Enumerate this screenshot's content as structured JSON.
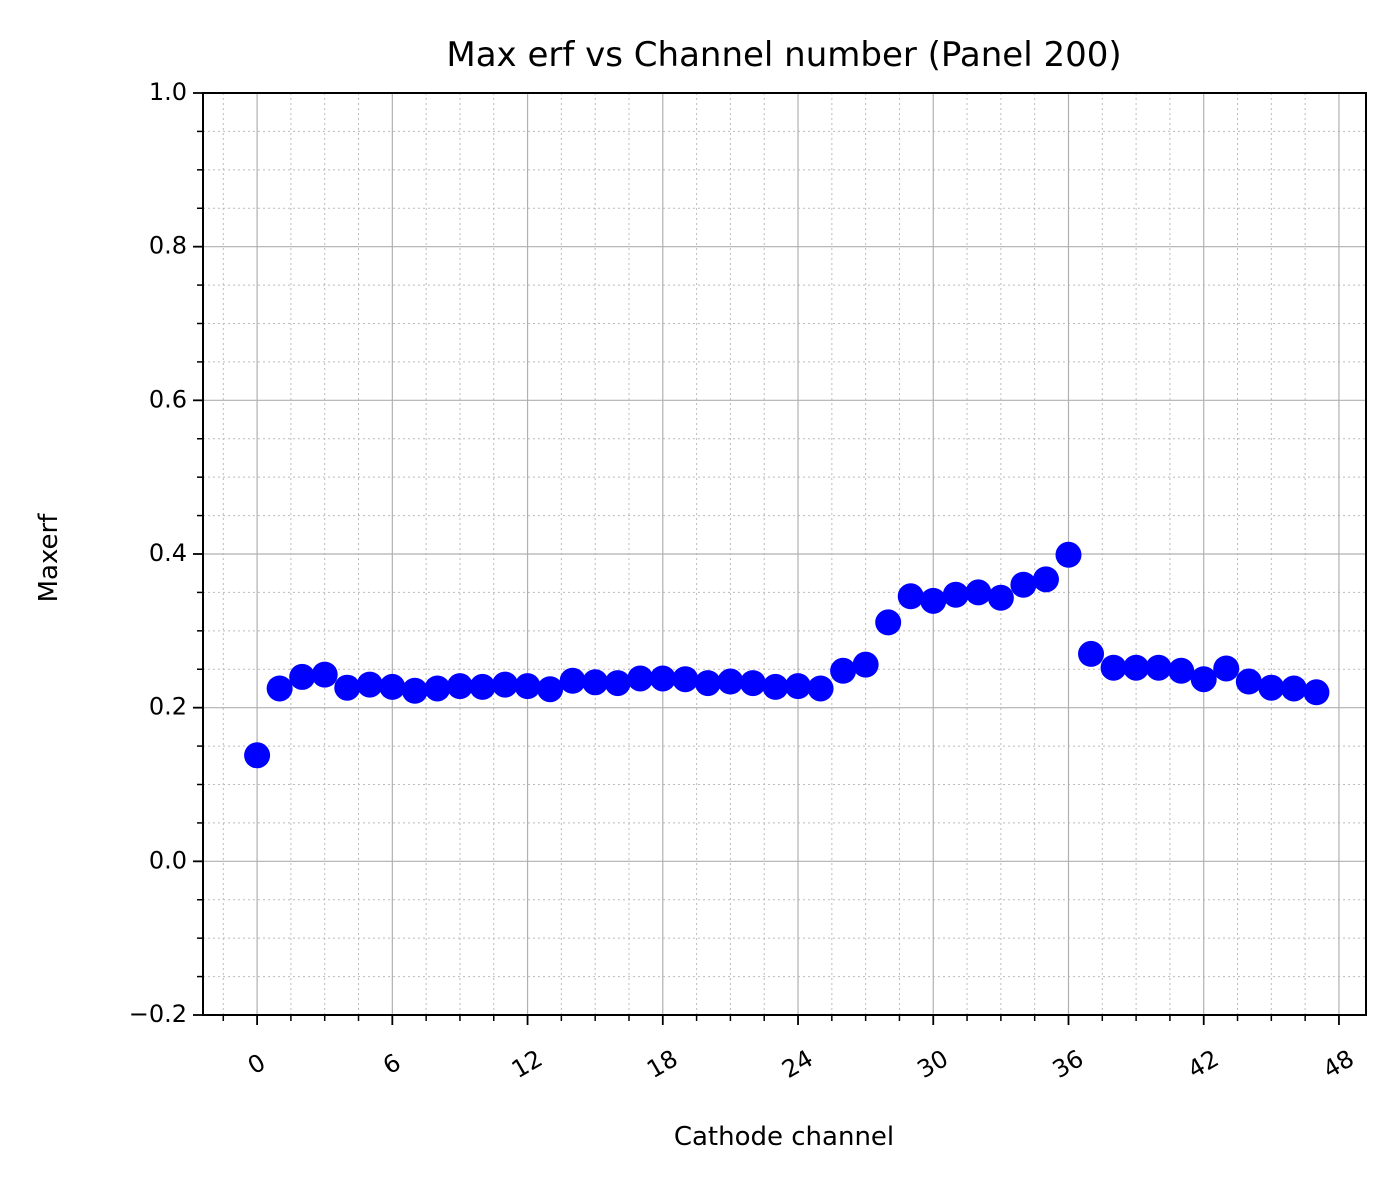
{
  "chart_data": {
    "type": "scatter",
    "title": "Max erf vs Channel number (Panel 200)",
    "xlabel": "Cathode channel",
    "ylabel": "Maxerf",
    "xlim": [
      -2.4,
      49.2
    ],
    "ylim": [
      -0.2,
      1.0
    ],
    "xticks": [
      0,
      6,
      12,
      18,
      24,
      30,
      36,
      42,
      48
    ],
    "xtick_labels": [
      "0",
      "6",
      "12",
      "18",
      "24",
      "30",
      "36",
      "42",
      "48"
    ],
    "xtick_rotation": -30,
    "yticks": [
      -0.2,
      0.0,
      0.2,
      0.4,
      0.6,
      0.8,
      1.0
    ],
    "ytick_labels": [
      "−0.2",
      "0.0",
      "0.2",
      "0.4",
      "0.6",
      "0.8",
      "1.0"
    ],
    "x_minor_step": 1.5,
    "y_minor_step": 0.05,
    "grid": true,
    "marker_color": "#0000ff",
    "series": [
      {
        "x": [
          0,
          1,
          2,
          3,
          4,
          5,
          6,
          7,
          8,
          9,
          10,
          11,
          12,
          13,
          14,
          15,
          16,
          17,
          18,
          19,
          20,
          21,
          22,
          23,
          24,
          25,
          26,
          27,
          28,
          29,
          30,
          31,
          32,
          33,
          34,
          35,
          36,
          37,
          38,
          39,
          40,
          41,
          42,
          43,
          44,
          45,
          46,
          47
        ],
        "values": [
          0.138,
          0.225,
          0.24,
          0.243,
          0.226,
          0.23,
          0.227,
          0.222,
          0.225,
          0.228,
          0.227,
          0.23,
          0.228,
          0.224,
          0.235,
          0.233,
          0.232,
          0.238,
          0.238,
          0.237,
          0.232,
          0.234,
          0.232,
          0.227,
          0.228,
          0.225,
          0.248,
          0.256,
          0.311,
          0.345,
          0.339,
          0.347,
          0.35,
          0.343,
          0.36,
          0.367,
          0.399,
          0.27,
          0.252,
          0.252,
          0.252,
          0.248,
          0.237,
          0.251,
          0.234,
          0.226,
          0.225,
          0.22
        ]
      }
    ]
  }
}
